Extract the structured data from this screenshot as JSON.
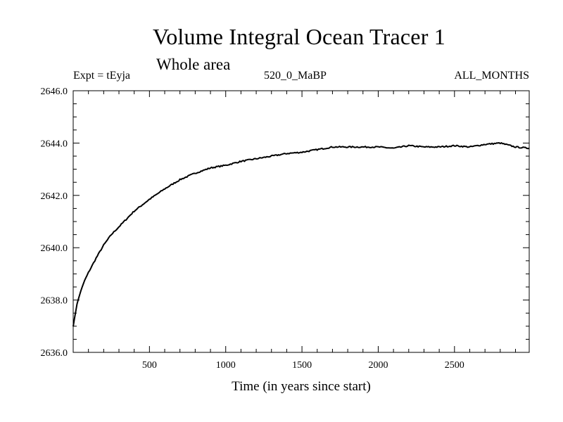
{
  "chart_data": {
    "type": "line",
    "title": "Volume Integral Ocean Tracer 1",
    "subtitle": "Whole area",
    "header_left": "Expt = tEyja",
    "header_center": "520_0_MaBP",
    "header_right": "ALL_MONTHS",
    "xlabel": "Time (in years since start)",
    "ylabel": "",
    "xlim": [
      0,
      2990
    ],
    "ylim": [
      2636.0,
      2646.0
    ],
    "xticks": [
      500,
      1000,
      1500,
      2000,
      2500
    ],
    "xtick_labels": [
      "500",
      "1000",
      "1500",
      "2000",
      "2500"
    ],
    "yticks": [
      2636.0,
      2638.0,
      2640.0,
      2642.0,
      2644.0,
      2646.0
    ],
    "ytick_labels": [
      "2636.0",
      "2638.0",
      "2640.0",
      "2642.0",
      "2644.0",
      "2646.0"
    ],
    "series": [
      {
        "name": "Volume Integral Ocean Tracer 1",
        "color": "#000000",
        "x": [
          0,
          25,
          50,
          75,
          100,
          150,
          200,
          250,
          300,
          400,
          500,
          600,
          700,
          800,
          900,
          1000,
          1100,
          1200,
          1300,
          1400,
          1500,
          1600,
          1700,
          1800,
          1900,
          2000,
          2100,
          2200,
          2300,
          2400,
          2500,
          2600,
          2700,
          2800,
          2900,
          2990
        ],
        "y": [
          2637.0,
          2637.85,
          2638.35,
          2638.75,
          2639.05,
          2639.6,
          2640.1,
          2640.5,
          2640.8,
          2641.4,
          2641.85,
          2642.25,
          2642.6,
          2642.85,
          2643.05,
          2643.15,
          2643.3,
          2643.4,
          2643.5,
          2643.6,
          2643.65,
          2643.75,
          2643.85,
          2643.85,
          2643.85,
          2643.85,
          2643.8,
          2643.9,
          2643.85,
          2643.85,
          2643.9,
          2643.85,
          2643.95,
          2644.0,
          2643.85,
          2643.8
        ]
      }
    ]
  }
}
